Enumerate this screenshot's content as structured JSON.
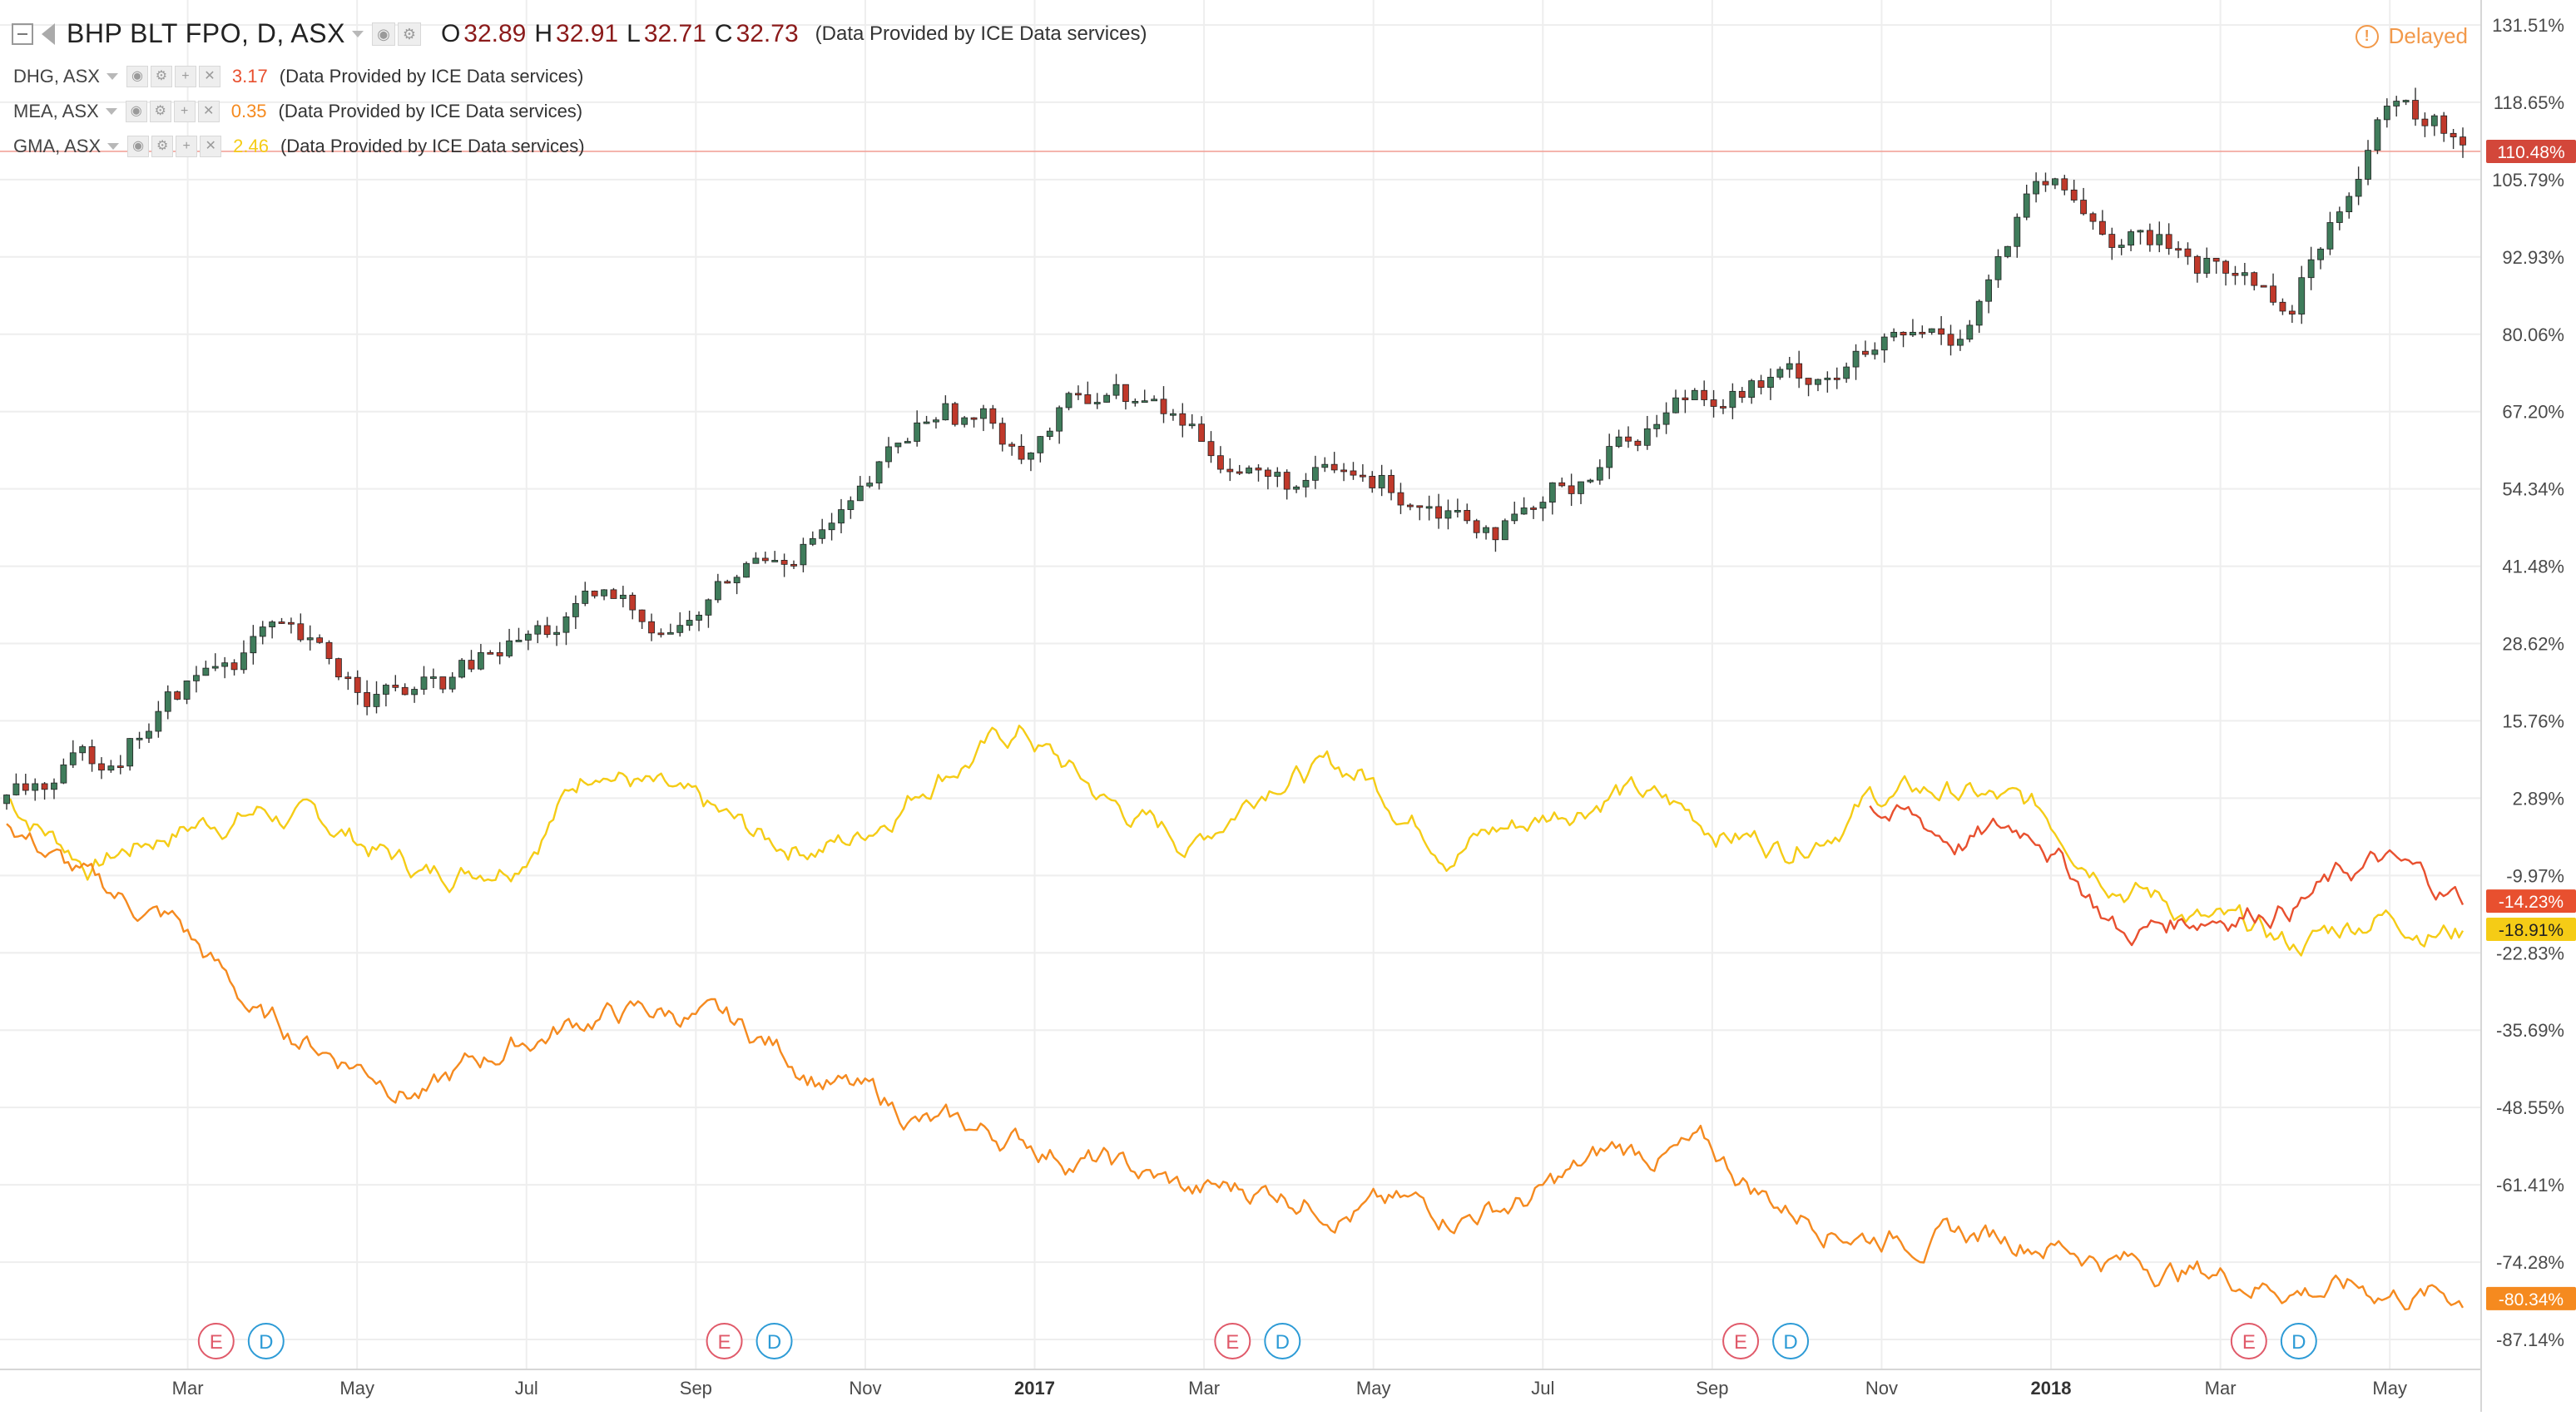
{
  "legend": {
    "main": {
      "symbol": "BHP BLT FPO, D, ASX",
      "o_key": "O",
      "o_val": "32.89",
      "h_key": "H",
      "h_val": "32.91",
      "l_key": "L",
      "l_val": "32.71",
      "c_key": "C",
      "c_val": "32.73",
      "provider": "(Data Provided by ICE Data services)"
    },
    "comparisons": [
      {
        "symbol": "DHG, ASX",
        "value": "3.17",
        "color": "#e8502f",
        "provider": "(Data Provided by ICE Data services)"
      },
      {
        "symbol": "MEA, ASX",
        "value": "0.35",
        "color": "#f58a1f",
        "provider": "(Data Provided by ICE Data services)"
      },
      {
        "symbol": "GMA, ASX",
        "value": "2.46",
        "color": "#f5cc16",
        "provider": "(Data Provided by ICE Data services)"
      }
    ]
  },
  "status": {
    "delayed_label": "Delayed",
    "delayed_icon": "!"
  },
  "colors": {
    "up": "#3f7c5b",
    "down": "#c0392b",
    "grid": "#eeeeee",
    "dhg": "#e8502f",
    "mea": "#f58a1f",
    "gma": "#f5cc16",
    "bhp_tag": "#d3473a"
  },
  "price_axis": {
    "labels": [
      "131.51%",
      "118.65%",
      "105.79%",
      "92.93%",
      "80.06%",
      "67.20%",
      "54.34%",
      "41.48%",
      "28.62%",
      "15.76%",
      "2.89%",
      "-9.97%",
      "-22.83%",
      "-35.69%",
      "-48.55%",
      "-61.41%",
      "-74.28%",
      "-87.14%"
    ],
    "values": [
      131.51,
      118.65,
      105.79,
      92.93,
      80.06,
      67.2,
      54.34,
      41.48,
      28.62,
      15.76,
      2.89,
      -9.97,
      -22.83,
      -35.69,
      -48.55,
      -61.41,
      -74.28,
      -87.14
    ]
  },
  "time_axis": {
    "labels": [
      "Mar",
      "May",
      "Jul",
      "Sep",
      "Nov",
      "2017",
      "Mar",
      "May",
      "Jul",
      "Sep",
      "Nov",
      "2018",
      "Mar",
      "May"
    ],
    "bold": [
      false,
      false,
      false,
      false,
      false,
      true,
      false,
      false,
      false,
      false,
      false,
      true,
      false,
      false
    ]
  },
  "price_tags": [
    {
      "text": "110.48%",
      "value": 110.48,
      "bg": "#d3473a",
      "fg": "#ffffff"
    },
    {
      "text": "-14.23%",
      "value": -14.23,
      "bg": "#e8502f",
      "fg": "#ffffff"
    },
    {
      "text": "-18.91%",
      "value": -18.91,
      "bg": "#f5cc16",
      "fg": "#222222"
    },
    {
      "text": "-80.34%",
      "value": -80.34,
      "bg": "#f58a1f",
      "fg": "#ffffff"
    }
  ],
  "events": [
    {
      "label": "E",
      "type": "earnings",
      "color": "#e05a6a"
    },
    {
      "label": "D",
      "type": "dividend",
      "color": "#2d9bd6"
    },
    {
      "label": "E",
      "type": "earnings",
      "color": "#e05a6a"
    },
    {
      "label": "D",
      "type": "dividend",
      "color": "#2d9bd6"
    },
    {
      "label": "E",
      "type": "earnings",
      "color": "#e05a6a"
    },
    {
      "label": "D",
      "type": "dividend",
      "color": "#2d9bd6"
    },
    {
      "label": "E",
      "type": "earnings",
      "color": "#e05a6a"
    },
    {
      "label": "D",
      "type": "dividend",
      "color": "#2d9bd6"
    },
    {
      "label": "E",
      "type": "earnings",
      "color": "#e05a6a"
    },
    {
      "label": "D",
      "type": "dividend",
      "color": "#2d9bd6"
    }
  ],
  "chart_data": {
    "type": "line",
    "x_range": [
      "2016-01",
      "2018-06"
    ],
    "y_unit": "%",
    "ylim": [
      -90,
      135
    ],
    "main_series": {
      "name": "BHP BLT FPO, D, ASX",
      "kind": "candlestick",
      "x": [
        "2016-01",
        "2016-02",
        "2016-03",
        "2016-04",
        "2016-05",
        "2016-06",
        "2016-07",
        "2016-08",
        "2016-09",
        "2016-10",
        "2016-11",
        "2016-12",
        "2017-01",
        "2017-02",
        "2017-03",
        "2017-04",
        "2017-05",
        "2017-06",
        "2017-07",
        "2017-08",
        "2017-09",
        "2017-10",
        "2017-11",
        "2017-12",
        "2018-01",
        "2018-02",
        "2018-03",
        "2018-04",
        "2018-05",
        "2018-06"
      ],
      "values": [
        2,
        8,
        20,
        30,
        22,
        20,
        28,
        34,
        32,
        44,
        50,
        68,
        62,
        72,
        64,
        55,
        55,
        53,
        48,
        62,
        72,
        72,
        76,
        80,
        104,
        96,
        92,
        86,
        118,
        112
      ]
    },
    "series": [
      {
        "name": "GMA, ASX",
        "color": "#f5cc16",
        "x": [
          "2016-01",
          "2016-02",
          "2016-03",
          "2016-04",
          "2016-05",
          "2016-06",
          "2016-07",
          "2016-08",
          "2016-09",
          "2016-10",
          "2016-11",
          "2016-12",
          "2017-01",
          "2017-02",
          "2017-03",
          "2017-04",
          "2017-05",
          "2017-06",
          "2017-07",
          "2017-08",
          "2017-09",
          "2017-10",
          "2017-11",
          "2017-12",
          "2018-01",
          "2018-02",
          "2018-03",
          "2018-04",
          "2018-05",
          "2018-06"
        ],
        "values": [
          3,
          -8,
          -2,
          1,
          -3,
          -10,
          -6,
          10,
          1,
          -5,
          -4,
          8,
          14,
          2,
          -5,
          8,
          7,
          -4,
          -1,
          5,
          -1,
          -5,
          3,
          4,
          0,
          -10,
          -18,
          -22,
          -16,
          -19
        ]
      },
      {
        "name": "MEA, ASX",
        "color": "#f58a1f",
        "x": [
          "2016-01",
          "2016-02",
          "2016-03",
          "2016-04",
          "2016-05",
          "2016-06",
          "2016-07",
          "2016-08",
          "2016-09",
          "2016-10",
          "2016-11",
          "2016-12",
          "2017-01",
          "2017-02",
          "2017-03",
          "2017-04",
          "2017-05",
          "2017-06",
          "2017-07",
          "2017-08",
          "2017-09",
          "2017-10",
          "2017-11",
          "2017-12",
          "2018-01",
          "2018-02",
          "2018-03",
          "2018-04",
          "2018-05",
          "2018-06"
        ],
        "values": [
          0,
          -12,
          -18,
          -34,
          -40,
          -46,
          -38,
          -33,
          -33,
          -38,
          -46,
          -52,
          -54,
          -58,
          -63,
          -62,
          -65,
          -66,
          -64,
          -56,
          -56,
          -65,
          -69,
          -70,
          -70,
          -74,
          -76,
          -78,
          -79,
          -80
        ]
      },
      {
        "name": "DHG, ASX",
        "color": "#e8502f",
        "x": [
          "2017-11",
          "2017-12",
          "2018-01",
          "2018-02",
          "2018-03",
          "2018-04",
          "2018-05",
          "2018-06"
        ],
        "values": [
          2,
          -4,
          -2,
          -20,
          -16,
          -14,
          -8,
          -14
        ]
      }
    ]
  }
}
